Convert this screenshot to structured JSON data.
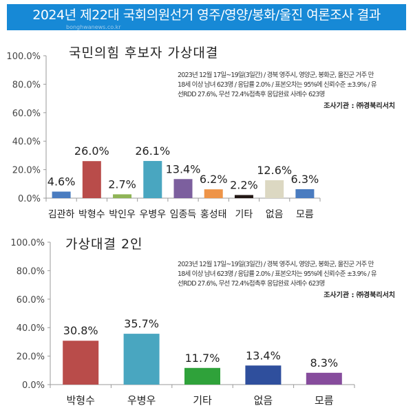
{
  "header": {
    "title": "2024년 제22대 국회의원선거 영주/영양/봉화/울진 여론조사 결과",
    "watermark": "bonghwanews.co.kr"
  },
  "colors": {
    "banner": "#1789d6"
  },
  "chart_data": [
    {
      "type": "bar",
      "title": "국민의힘 후보자 가상대결",
      "categories": [
        "김관하",
        "박형수",
        "박인우",
        "우병우",
        "임종득",
        "홍성태",
        "기타",
        "없음",
        "모름"
      ],
      "values": [
        4.6,
        26.0,
        2.7,
        26.1,
        13.4,
        6.2,
        2.2,
        12.6,
        6.3
      ],
      "labels": [
        "4.6%",
        "26.0%",
        "2.7%",
        "26.1%",
        "13.4%",
        "6.2%",
        "2.2%",
        "12.6%",
        "6.3%"
      ],
      "colors": [
        "#4a7cc0",
        "#b94c4a",
        "#8fb456",
        "#49a6c0",
        "#7c5f9e",
        "#ee9448",
        "#231815",
        "#dcd8c2",
        "#4a7cc0"
      ],
      "ylim": [
        0,
        100
      ],
      "yticks": [
        "0.0%",
        "20.0%",
        "40.0%",
        "60.0%",
        "80.0%",
        "100.0%"
      ],
      "note": [
        "2023년 12월 17일~19일(3일간) / 경북 영주시, 영양군, 봉화군, 울진군 거주 만",
        "18세 이상 남녀 623명 / 응답률 2.0% / 표본오차는 95%에 신뢰수준 ±3.9% / 유",
        "선RDD 27.6%, 무선 72.4%접촉후 응답완료 사례수 623명"
      ],
      "source": "조사기관 : ㈜경북리서치"
    },
    {
      "type": "bar",
      "title": "가상대결 2인",
      "categories": [
        "박형수",
        "우병우",
        "기타",
        "없음",
        "모름"
      ],
      "values": [
        30.8,
        35.7,
        11.7,
        13.4,
        8.3
      ],
      "labels": [
        "30.8%",
        "35.7%",
        "11.7%",
        "13.4%",
        "8.3%"
      ],
      "colors": [
        "#b94c4a",
        "#49a6c0",
        "#2fa23a",
        "#2f4f9d",
        "#864c9c"
      ],
      "ylim": [
        0,
        100
      ],
      "yticks": [
        "0.0%",
        "20.0%",
        "40.0%",
        "60.0%",
        "80.0%",
        "100.0%"
      ],
      "note": [
        "2023년 12월 17일~19일(3일간) / 경북 영주시, 영양군, 봉화군, 울진군 거주 만",
        "18세 이상 남녀 623명 / 응답률 2.0% / 표본오차는 95%에 신뢰수준 ±3.9% / 유",
        "선RDD 27.6%, 무선 72.4%접촉후 응답완료 사례수 623명"
      ],
      "source": "조사기관 : ㈜경북리서치"
    }
  ]
}
